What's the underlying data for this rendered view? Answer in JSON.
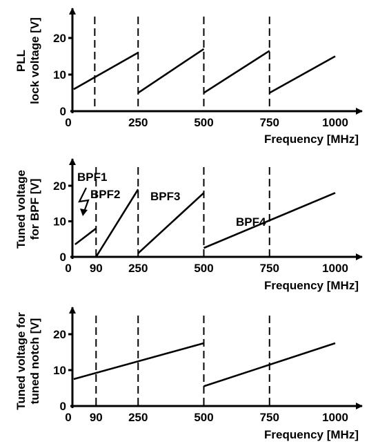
{
  "chart_data": [
    {
      "type": "line",
      "ylabel": [
        "PLL",
        "lock voltage [V]"
      ],
      "xlabel": "Frequency [MHz]",
      "x_ticks": [
        "0",
        "250",
        "500",
        "750",
        "1000"
      ],
      "y_ticks": [
        "0",
        "10",
        "20"
      ],
      "xlim": [
        0,
        1050
      ],
      "ylim": [
        0,
        25
      ],
      "vlines": [
        85,
        250,
        500,
        750
      ],
      "series": [
        {
          "x": [
            5,
            250
          ],
          "y": [
            6,
            16
          ]
        },
        {
          "x": [
            250,
            500
          ],
          "y": [
            5,
            17
          ]
        },
        {
          "x": [
            500,
            750
          ],
          "y": [
            5,
            16.5
          ]
        },
        {
          "x": [
            750,
            1000
          ],
          "y": [
            5,
            15
          ]
        }
      ],
      "annotations": []
    },
    {
      "type": "line",
      "ylabel": [
        "Tuned voltage",
        "for BPF [V]"
      ],
      "xlabel": "Frequency [MHz]",
      "x_ticks": [
        "0",
        "90",
        "250",
        "500",
        "750",
        "1000"
      ],
      "y_ticks": [
        "0",
        "10",
        "20"
      ],
      "xlim": [
        0,
        1050
      ],
      "ylim": [
        0,
        25
      ],
      "vlines": [
        90,
        250,
        500,
        750
      ],
      "series": [
        {
          "x": [
            10,
            90
          ],
          "y": [
            3.5,
            8
          ]
        },
        {
          "x": [
            90,
            250
          ],
          "y": [
            0,
            19
          ]
        },
        {
          "x": [
            250,
            500
          ],
          "y": [
            1,
            18
          ]
        },
        {
          "x": [
            500,
            1000
          ],
          "y": [
            2.5,
            18
          ]
        }
      ],
      "annotations": [
        "BPF1",
        "BPF2",
        "BPF3",
        "BPF4"
      ]
    },
    {
      "type": "line",
      "ylabel": [
        "Tuned voltage for",
        "tuned notch [V]"
      ],
      "xlabel": "Frequency [MHz]",
      "x_ticks": [
        "0",
        "90",
        "250",
        "500",
        "750",
        "1000"
      ],
      "y_ticks": [
        "0",
        "10",
        "20"
      ],
      "xlim": [
        0,
        1050
      ],
      "ylim": [
        0,
        25
      ],
      "vlines": [
        90,
        250,
        500,
        750
      ],
      "series": [
        {
          "x": [
            5,
            500
          ],
          "y": [
            7.5,
            17.5
          ]
        },
        {
          "x": [
            500,
            1000
          ],
          "y": [
            5.5,
            17.5
          ]
        }
      ],
      "annotations": []
    }
  ]
}
